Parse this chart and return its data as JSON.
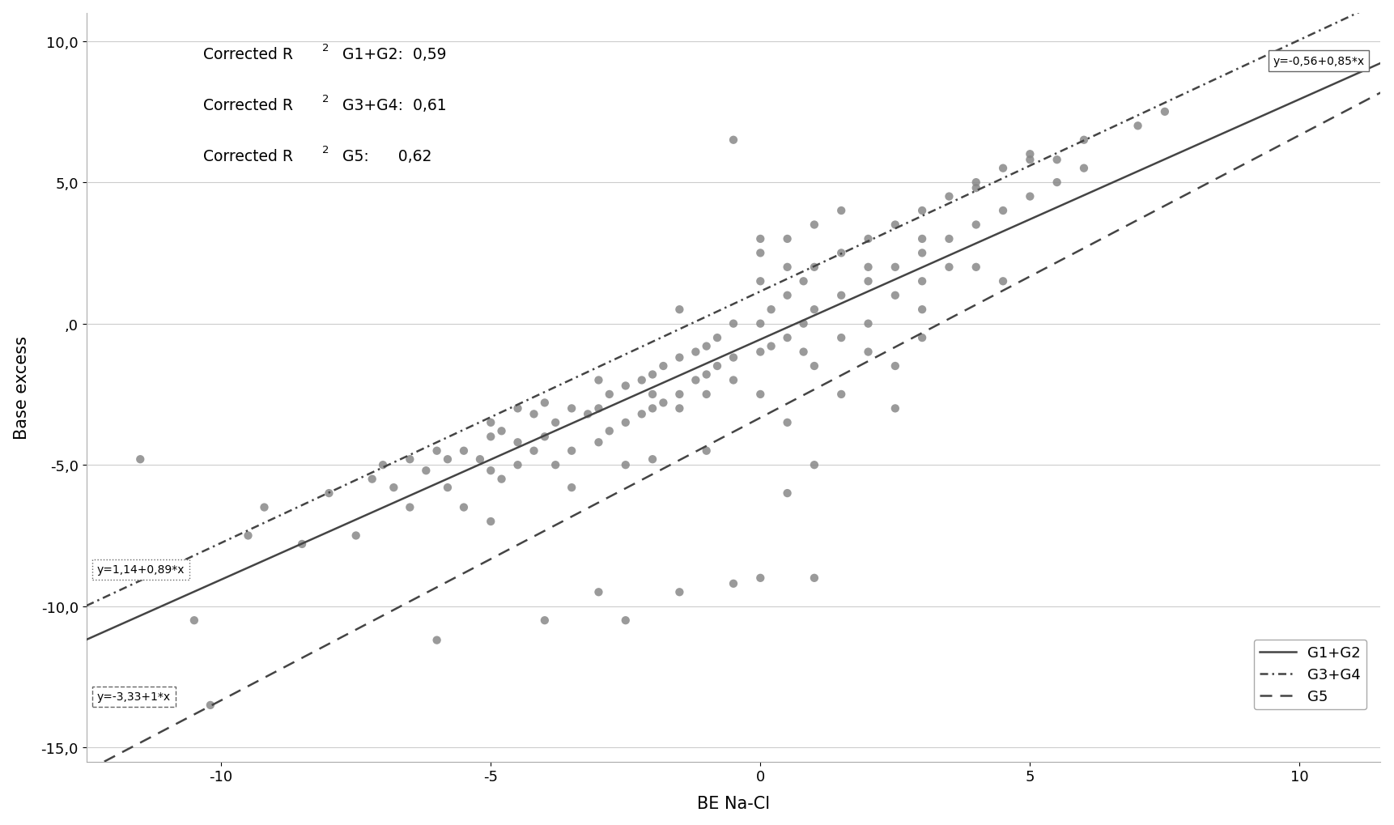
{
  "title": "",
  "xlabel": "BE Na-Cl",
  "ylabel": "Base excess",
  "xlim": [
    -12.5,
    11.5
  ],
  "ylim": [
    -15.5,
    11.0
  ],
  "xticks": [
    -10,
    -5,
    0,
    5,
    10
  ],
  "yticks": [
    -15.0,
    -10.0,
    -5.0,
    0.0,
    5.0,
    10.0
  ],
  "ytick_labels": [
    "-15,0",
    "-10,0",
    "-5,0",
    ",0",
    "5,0",
    "10,0"
  ],
  "line_G1G2": {
    "intercept": -0.56,
    "slope": 0.85,
    "color": "#444444",
    "label": "G1+G2",
    "eq": "y=-0,56+0,85*x"
  },
  "line_G3G4": {
    "intercept": 1.14,
    "slope": 0.89,
    "color": "#444444",
    "label": "G3+G4",
    "eq": "y=1,14+0,89*x"
  },
  "line_G5": {
    "intercept": -3.33,
    "slope": 1.0,
    "color": "#444444",
    "label": "G5",
    "eq": "y=-3,33+1*x"
  },
  "annotation_line1": "Corrected R",
  "annotation_line2": "Corrected R",
  "annotation_line3": "Corrected R",
  "scatter_color": "#888888",
  "scatter_size": 55,
  "scatter_alpha": 0.85,
  "background_color": "#ffffff",
  "scatter_points": [
    [
      -11.5,
      -4.8
    ],
    [
      -10.5,
      -10.5
    ],
    [
      -10.2,
      -13.5
    ],
    [
      -9.5,
      -7.5
    ],
    [
      -9.2,
      -6.5
    ],
    [
      -8.5,
      -7.8
    ],
    [
      -8.0,
      -6.0
    ],
    [
      -7.5,
      -7.5
    ],
    [
      -7.2,
      -5.5
    ],
    [
      -7.0,
      -5.0
    ],
    [
      -6.8,
      -5.8
    ],
    [
      -6.5,
      -4.8
    ],
    [
      -6.5,
      -6.5
    ],
    [
      -6.2,
      -5.2
    ],
    [
      -6.0,
      -4.5
    ],
    [
      -5.8,
      -4.8
    ],
    [
      -5.8,
      -5.8
    ],
    [
      -5.5,
      -4.5
    ],
    [
      -5.5,
      -6.5
    ],
    [
      -5.2,
      -4.8
    ],
    [
      -5.0,
      -5.2
    ],
    [
      -5.0,
      -4.0
    ],
    [
      -5.0,
      -7.0
    ],
    [
      -4.8,
      -3.8
    ],
    [
      -4.8,
      -5.5
    ],
    [
      -4.5,
      -4.2
    ],
    [
      -4.5,
      -5.0
    ],
    [
      -4.2,
      -3.2
    ],
    [
      -4.2,
      -4.5
    ],
    [
      -4.0,
      -2.8
    ],
    [
      -4.0,
      -4.0
    ],
    [
      -3.8,
      -3.5
    ],
    [
      -3.8,
      -5.0
    ],
    [
      -3.5,
      -3.0
    ],
    [
      -3.5,
      -4.5
    ],
    [
      -3.5,
      -5.8
    ],
    [
      -3.2,
      -3.2
    ],
    [
      -3.0,
      -3.0
    ],
    [
      -3.0,
      -4.2
    ],
    [
      -2.8,
      -2.5
    ],
    [
      -2.8,
      -3.8
    ],
    [
      -2.5,
      -2.2
    ],
    [
      -2.5,
      -3.5
    ],
    [
      -2.5,
      -5.0
    ],
    [
      -2.2,
      -2.0
    ],
    [
      -2.2,
      -3.2
    ],
    [
      -2.0,
      -2.5
    ],
    [
      -2.0,
      -1.8
    ],
    [
      -2.0,
      -3.0
    ],
    [
      -1.8,
      -2.8
    ],
    [
      -1.8,
      -1.5
    ],
    [
      -1.5,
      -2.5
    ],
    [
      -1.5,
      -1.2
    ],
    [
      -1.5,
      -3.0
    ],
    [
      -1.2,
      -2.0
    ],
    [
      -1.2,
      -1.0
    ],
    [
      -1.0,
      -1.8
    ],
    [
      -1.0,
      -0.8
    ],
    [
      -1.0,
      -2.5
    ],
    [
      -0.8,
      -1.5
    ],
    [
      -0.8,
      -0.5
    ],
    [
      -0.5,
      -1.2
    ],
    [
      -0.5,
      0.0
    ],
    [
      -0.5,
      -2.0
    ],
    [
      -0.5,
      6.5
    ],
    [
      0.0,
      -1.0
    ],
    [
      0.0,
      0.0
    ],
    [
      0.0,
      -2.5
    ],
    [
      0.0,
      1.5
    ],
    [
      0.0,
      2.5
    ],
    [
      0.0,
      3.0
    ],
    [
      0.2,
      -0.8
    ],
    [
      0.2,
      0.5
    ],
    [
      0.5,
      -0.5
    ],
    [
      0.5,
      1.0
    ],
    [
      0.5,
      2.0
    ],
    [
      0.5,
      3.0
    ],
    [
      0.5,
      -3.5
    ],
    [
      0.8,
      0.0
    ],
    [
      0.8,
      1.5
    ],
    [
      0.8,
      -1.0
    ],
    [
      1.0,
      0.5
    ],
    [
      1.0,
      2.0
    ],
    [
      1.0,
      3.5
    ],
    [
      1.0,
      -1.5
    ],
    [
      1.0,
      -9.0
    ],
    [
      1.5,
      1.0
    ],
    [
      1.5,
      2.5
    ],
    [
      1.5,
      -0.5
    ],
    [
      1.5,
      -2.5
    ],
    [
      1.5,
      4.0
    ],
    [
      2.0,
      1.5
    ],
    [
      2.0,
      3.0
    ],
    [
      2.0,
      0.0
    ],
    [
      2.0,
      -1.0
    ],
    [
      2.0,
      2.0
    ],
    [
      2.5,
      2.0
    ],
    [
      2.5,
      3.5
    ],
    [
      2.5,
      1.0
    ],
    [
      2.5,
      -3.0
    ],
    [
      3.0,
      2.5
    ],
    [
      3.0,
      4.0
    ],
    [
      3.0,
      1.5
    ],
    [
      3.0,
      0.5
    ],
    [
      3.0,
      3.0
    ],
    [
      3.5,
      3.0
    ],
    [
      3.5,
      4.5
    ],
    [
      3.5,
      2.0
    ],
    [
      4.0,
      3.5
    ],
    [
      4.0,
      5.0
    ],
    [
      4.0,
      4.8
    ],
    [
      4.5,
      4.0
    ],
    [
      4.5,
      5.5
    ],
    [
      5.0,
      4.5
    ],
    [
      5.0,
      6.0
    ],
    [
      5.0,
      5.8
    ],
    [
      5.5,
      5.0
    ],
    [
      5.5,
      5.8
    ],
    [
      6.0,
      5.5
    ],
    [
      6.0,
      6.5
    ],
    [
      7.0,
      7.0
    ],
    [
      7.5,
      7.5
    ],
    [
      -3.0,
      -9.5
    ],
    [
      -2.5,
      -10.5
    ],
    [
      -1.5,
      -9.5
    ],
    [
      -0.5,
      -9.2
    ],
    [
      -6.0,
      -11.2
    ],
    [
      -4.0,
      -10.5
    ],
    [
      0.0,
      -9.0
    ],
    [
      -5.0,
      -3.5
    ],
    [
      -4.5,
      -3.0
    ],
    [
      -3.0,
      -2.0
    ],
    [
      -2.0,
      -4.8
    ],
    [
      -1.5,
      0.5
    ],
    [
      -1.0,
      -4.5
    ],
    [
      0.5,
      -6.0
    ],
    [
      1.0,
      -5.0
    ],
    [
      2.5,
      -1.5
    ],
    [
      3.0,
      -0.5
    ],
    [
      4.0,
      2.0
    ],
    [
      4.5,
      1.5
    ]
  ]
}
